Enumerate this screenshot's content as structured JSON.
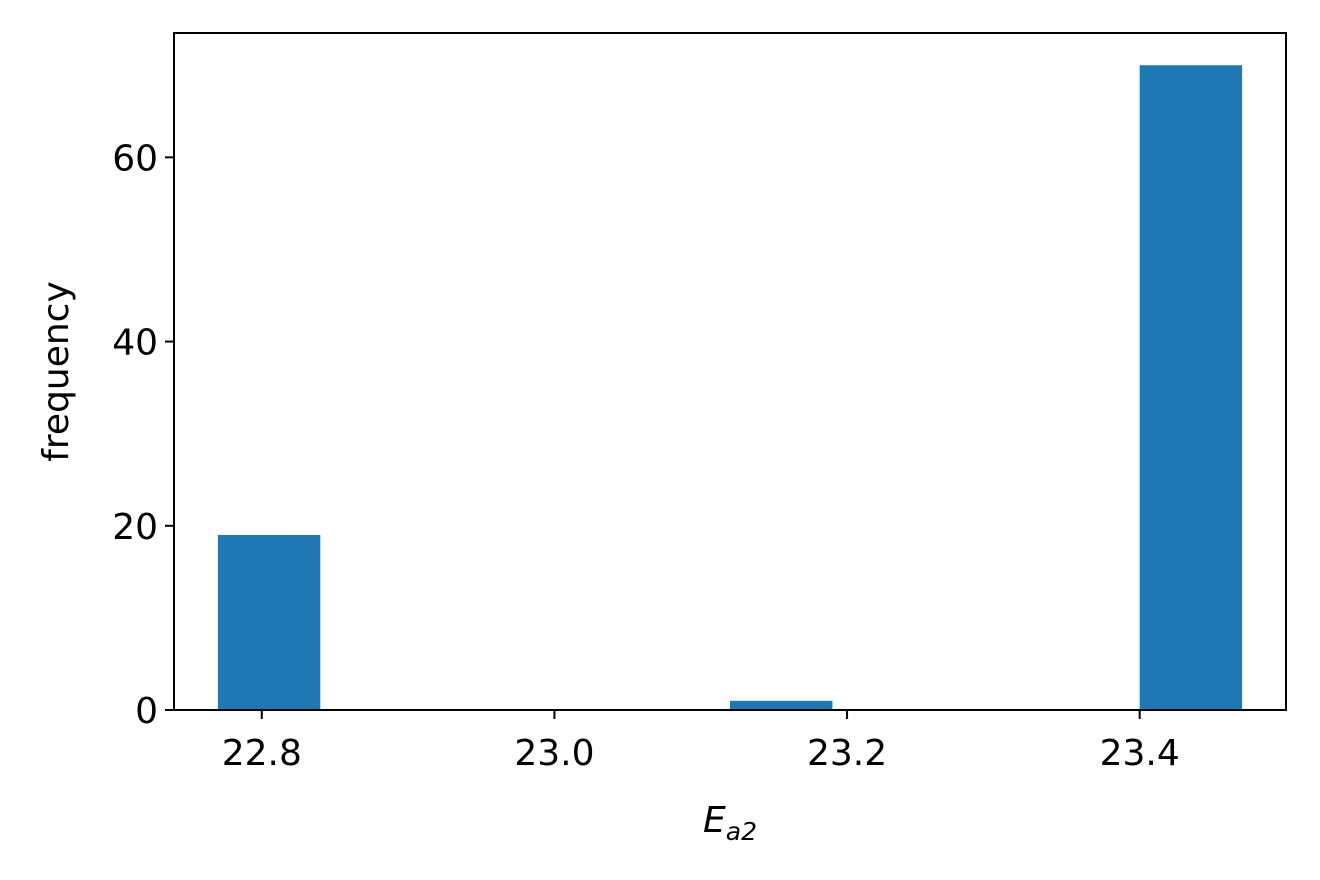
{
  "chart_data": {
    "type": "bar",
    "bar_color": "#1f77b4",
    "xlabel": {
      "main": "E",
      "sub": "a2"
    },
    "ylabel": "frequency",
    "xlim": [
      22.74,
      23.5
    ],
    "ylim": [
      0,
      73.5
    ],
    "x_ticks": [
      22.8,
      23.0,
      23.2,
      23.4
    ],
    "x_tick_labels": [
      "22.8",
      "23.0",
      "23.2",
      "23.4"
    ],
    "y_ticks": [
      0,
      20,
      40,
      60
    ],
    "y_tick_labels": [
      "0",
      "20",
      "40",
      "60"
    ],
    "bins": [
      {
        "x0": 22.77,
        "x1": 22.84,
        "value": 19
      },
      {
        "x0": 22.84,
        "x1": 22.91,
        "value": 0
      },
      {
        "x0": 22.91,
        "x1": 22.98,
        "value": 0
      },
      {
        "x0": 22.98,
        "x1": 23.05,
        "value": 0
      },
      {
        "x0": 23.05,
        "x1": 23.12,
        "value": 0
      },
      {
        "x0": 23.12,
        "x1": 23.19,
        "value": 1
      },
      {
        "x0": 23.19,
        "x1": 23.26,
        "value": 0
      },
      {
        "x0": 23.26,
        "x1": 23.33,
        "value": 0
      },
      {
        "x0": 23.33,
        "x1": 23.4,
        "value": 0
      },
      {
        "x0": 23.4,
        "x1": 23.47,
        "value": 70
      }
    ],
    "grid": false,
    "legend": "none"
  }
}
